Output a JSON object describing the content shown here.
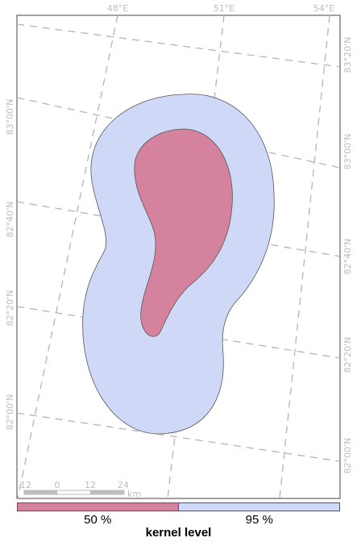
{
  "map": {
    "grid_labels_top": [
      "48°E",
      "51°E",
      "54°E"
    ],
    "grid_labels_left": [
      "83°00'N",
      "82°40'N",
      "82°20'N",
      "82°00'N"
    ],
    "grid_labels_right": [
      "83°20'N",
      "83°00'N",
      "82°40'N",
      "82°20'N",
      "82°00'N"
    ],
    "scale_bar": {
      "ticks": [
        "12",
        "0",
        "12",
        "24"
      ],
      "unit": "km"
    }
  },
  "legend": {
    "title": "kernel level",
    "items": [
      {
        "label": "50 %",
        "color": "#d4829e"
      },
      {
        "label": "95 %",
        "color": "#cfd9f7"
      }
    ]
  },
  "colors": {
    "kernel_50": "#d4829e",
    "kernel_95": "#cfd9f7",
    "outline": "#555555",
    "graticule": "#b4b4b4"
  }
}
